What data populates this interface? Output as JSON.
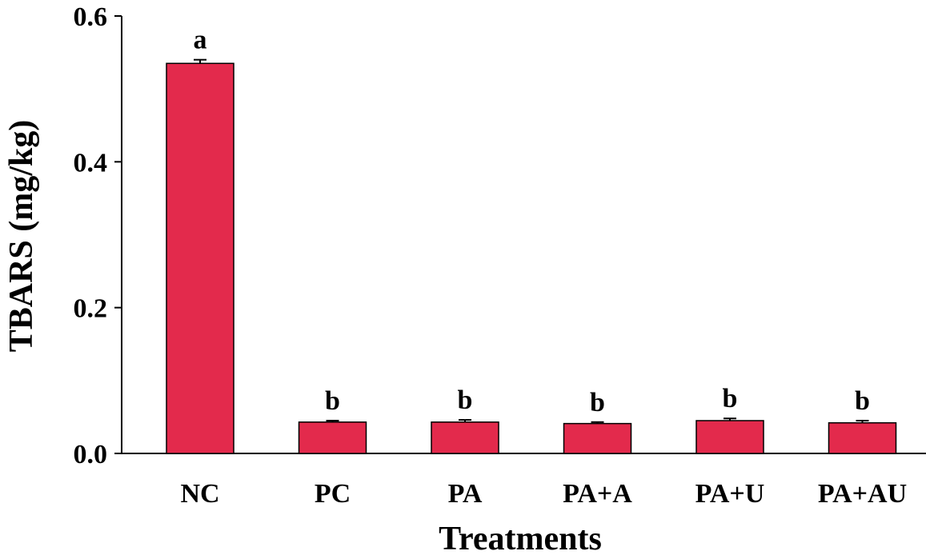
{
  "chart_data": {
    "type": "bar",
    "title": "",
    "xlabel": "Treatments",
    "ylabel": "TBARS (mg/kg)",
    "ylim": [
      0,
      0.6
    ],
    "yticks": [
      "0.0",
      "0.2",
      "0.4",
      "0.6"
    ],
    "ytick_values": [
      0,
      0.2,
      0.4,
      0.6
    ],
    "grid": false,
    "categories": [
      "NC",
      "PC",
      "PA",
      "PA+A",
      "PA+U",
      "PA+AU"
    ],
    "values": [
      0.535,
      0.043,
      0.043,
      0.041,
      0.045,
      0.042
    ],
    "errors": [
      0.005,
      0.002,
      0.003,
      0.002,
      0.003,
      0.003
    ],
    "significance": [
      "a",
      "b",
      "b",
      "b",
      "b",
      "b"
    ],
    "bar_color": "#E32A4C",
    "bar_edge_color": "#000000"
  }
}
